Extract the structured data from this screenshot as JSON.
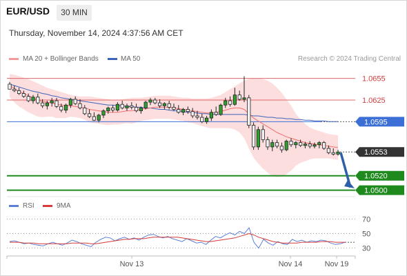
{
  "header": {
    "pair": "EUR/USD",
    "timeframe": "30 MIN",
    "datetime": "Thursday, November 14, 2024 4:37:56 AM CET"
  },
  "legend": {
    "ma20": "MA 20 + Bollinger Bands",
    "ma50": "MA 50",
    "credit": "Research © 2024 Trading Central",
    "rsi": "RSI",
    "rsi_ma": "9MA"
  },
  "colors": {
    "ma20": "#f06f6f",
    "band_fill": "#fbd3d3",
    "ma50": "#3d63b8",
    "candle_up": "#2f9e2f",
    "candle_down": "#f0f0f0",
    "resistance": "#e06666",
    "pivot": "#3b6fd6",
    "support": "#1e8a1e",
    "current": "#333333",
    "arrow": "#2e5fa8",
    "rsi": "#5a7fd6",
    "rsi_ma": "#d63a3a"
  },
  "levels": [
    {
      "value": "1.0655",
      "kind": "resistance"
    },
    {
      "value": "1.0625",
      "kind": "resistance"
    },
    {
      "value": "1.0595",
      "kind": "pivot"
    },
    {
      "value": "1.0553",
      "kind": "current"
    },
    {
      "value": "1.0520",
      "kind": "support"
    },
    {
      "value": "1.0500",
      "kind": "support"
    }
  ],
  "chart_data": {
    "type": "candlestick",
    "price_range": [
      1.0492,
      1.0668
    ],
    "x_ticks": [
      "Nov 13",
      "Nov 14",
      "Nov 19"
    ],
    "candles": [
      [
        1.0647,
        1.065,
        1.064,
        1.064
      ],
      [
        1.064,
        1.0645,
        1.0636,
        1.0638
      ],
      [
        1.0638,
        1.0642,
        1.0632,
        1.0634
      ],
      [
        1.0634,
        1.0638,
        1.0628,
        1.063
      ],
      [
        1.063,
        1.0634,
        1.0622,
        1.0624
      ],
      [
        1.0624,
        1.0632,
        1.062,
        1.0629
      ],
      [
        1.0629,
        1.0634,
        1.0619,
        1.0621
      ],
      [
        1.0621,
        1.0626,
        1.0614,
        1.0617
      ],
      [
        1.0617,
        1.0624,
        1.0612,
        1.0621
      ],
      [
        1.0621,
        1.0628,
        1.0616,
        1.0624
      ],
      [
        1.0624,
        1.0628,
        1.0614,
        1.0616
      ],
      [
        1.0616,
        1.062,
        1.0608,
        1.0611
      ],
      [
        1.0611,
        1.062,
        1.0607,
        1.0618
      ],
      [
        1.0618,
        1.0628,
        1.0614,
        1.0626
      ],
      [
        1.0626,
        1.063,
        1.0618,
        1.062
      ],
      [
        1.062,
        1.0626,
        1.0612,
        1.0614
      ],
      [
        1.0614,
        1.0618,
        1.0604,
        1.0606
      ],
      [
        1.0606,
        1.0612,
        1.06,
        1.0602
      ],
      [
        1.0602,
        1.0608,
        1.0596,
        1.0597
      ],
      [
        1.0597,
        1.0606,
        1.0594,
        1.0604
      ],
      [
        1.0604,
        1.0612,
        1.06,
        1.061
      ],
      [
        1.061,
        1.0616,
        1.0606,
        1.0614
      ],
      [
        1.0614,
        1.0618,
        1.0608,
        1.0611
      ],
      [
        1.0611,
        1.0622,
        1.0609,
        1.0619
      ],
      [
        1.0619,
        1.0624,
        1.0612,
        1.0614
      ],
      [
        1.0614,
        1.062,
        1.061,
        1.0617
      ],
      [
        1.0617,
        1.0622,
        1.0612,
        1.0615
      ],
      [
        1.0615,
        1.062,
        1.0608,
        1.061
      ],
      [
        1.061,
        1.0616,
        1.0606,
        1.0614
      ],
      [
        1.0614,
        1.0624,
        1.0612,
        1.0622
      ],
      [
        1.0622,
        1.0628,
        1.0618,
        1.0625
      ],
      [
        1.0625,
        1.0628,
        1.0619,
        1.0621
      ],
      [
        1.0621,
        1.0626,
        1.0614,
        1.0617
      ],
      [
        1.0617,
        1.0622,
        1.0612,
        1.062
      ],
      [
        1.062,
        1.0624,
        1.0612,
        1.0615
      ],
      [
        1.0615,
        1.062,
        1.061,
        1.0612
      ],
      [
        1.0612,
        1.0618,
        1.0606,
        1.0608
      ],
      [
        1.0608,
        1.0614,
        1.0604,
        1.0612
      ],
      [
        1.0612,
        1.0616,
        1.0606,
        1.0609
      ],
      [
        1.0609,
        1.0614,
        1.06,
        1.0603
      ],
      [
        1.0603,
        1.061,
        1.0598,
        1.0601
      ],
      [
        1.0601,
        1.0606,
        1.0593,
        1.0595
      ],
      [
        1.0595,
        1.0603,
        1.0592,
        1.06
      ],
      [
        1.06,
        1.0612,
        1.0596,
        1.0608
      ],
      [
        1.0608,
        1.0616,
        1.0603,
        1.0605
      ],
      [
        1.0605,
        1.062,
        1.0603,
        1.0618
      ],
      [
        1.0618,
        1.0628,
        1.0614,
        1.0624
      ],
      [
        1.0624,
        1.063,
        1.0616,
        1.0619
      ],
      [
        1.0619,
        1.0642,
        1.0617,
        1.0632
      ],
      [
        1.0632,
        1.0638,
        1.0624,
        1.0626
      ],
      [
        1.0626,
        1.0658,
        1.0622,
        1.0628
      ],
      [
        1.0628,
        1.0632,
        1.0586,
        1.059
      ],
      [
        1.059,
        1.0594,
        1.0556,
        1.056
      ],
      [
        1.056,
        1.0588,
        1.0556,
        1.0584
      ],
      [
        1.0584,
        1.059,
        1.0566,
        1.057
      ],
      [
        1.057,
        1.0574,
        1.0556,
        1.056
      ],
      [
        1.056,
        1.057,
        1.0554,
        1.0566
      ],
      [
        1.0566,
        1.057,
        1.0558,
        1.0561
      ],
      [
        1.0561,
        1.0566,
        1.0552,
        1.0556
      ],
      [
        1.0556,
        1.057,
        1.0554,
        1.0568
      ],
      [
        1.0568,
        1.0572,
        1.056,
        1.0563
      ],
      [
        1.0563,
        1.0568,
        1.0558,
        1.0566
      ],
      [
        1.0566,
        1.057,
        1.056,
        1.0562
      ],
      [
        1.0562,
        1.0567,
        1.0558,
        1.0564
      ],
      [
        1.0564,
        1.0568,
        1.0558,
        1.0561
      ],
      [
        1.0561,
        1.0566,
        1.0558,
        1.0563
      ],
      [
        1.0563,
        1.0568,
        1.0558,
        1.0566
      ],
      [
        1.0566,
        1.0568,
        1.0556,
        1.0558
      ],
      [
        1.0558,
        1.0562,
        1.055,
        1.0552
      ],
      [
        1.0552,
        1.0558,
        1.0548,
        1.055
      ],
      [
        1.055,
        1.0556,
        1.0548,
        1.0553
      ]
    ],
    "ma20": [
      1.0645,
      1.0641,
      1.0637,
      1.0634,
      1.0631,
      1.0628,
      1.0625,
      1.0623,
      1.0622,
      1.0621,
      1.0619,
      1.0618,
      1.0617,
      1.0617,
      1.0616,
      1.0615,
      1.0614,
      1.0612,
      1.0611,
      1.061,
      1.0609,
      1.0608,
      1.0608,
      1.0608,
      1.0609,
      1.061,
      1.061,
      1.0611,
      1.0612,
      1.0613,
      1.0614,
      1.0615,
      1.0615,
      1.0615,
      1.0615,
      1.0614,
      1.0613,
      1.0612,
      1.0611,
      1.061,
      1.0609,
      1.0608,
      1.0607,
      1.0607,
      1.0608,
      1.0609,
      1.0611,
      1.0613,
      1.0614,
      1.0614,
      1.0612,
      1.0606,
      1.06,
      1.0596,
      1.0592,
      1.0588,
      1.0584,
      1.058,
      1.0577,
      1.0574,
      1.0572,
      1.057,
      1.0568,
      1.0566,
      1.0565,
      1.0564,
      1.0563,
      1.0562,
      1.0561,
      1.056,
      1.0559
    ],
    "bb_upper": [
      1.0661,
      1.066,
      1.0658,
      1.0656,
      1.0654,
      1.0651,
      1.0648,
      1.0645,
      1.0642,
      1.064,
      1.0638,
      1.0636,
      1.0634,
      1.0632,
      1.0631,
      1.063,
      1.063,
      1.063,
      1.0629,
      1.0628,
      1.0627,
      1.0626,
      1.0625,
      1.0625,
      1.0626,
      1.0627,
      1.0628,
      1.0628,
      1.0628,
      1.0629,
      1.063,
      1.0631,
      1.0631,
      1.0631,
      1.0631,
      1.063,
      1.0629,
      1.0628,
      1.0628,
      1.0627,
      1.0627,
      1.0627,
      1.0627,
      1.0628,
      1.063,
      1.0632,
      1.0636,
      1.064,
      1.0644,
      1.0648,
      1.0652,
      1.0654,
      1.0655,
      1.0655,
      1.0654,
      1.0652,
      1.0648,
      1.0642,
      1.0635,
      1.0626,
      1.0617,
      1.0606,
      1.0598,
      1.0592,
      1.0587,
      1.0584,
      1.0582,
      1.058,
      1.0578,
      1.0577,
      1.0576
    ],
    "bb_lower": [
      1.0629,
      1.0622,
      1.0616,
      1.0612,
      1.0608,
      1.0605,
      1.0602,
      1.0601,
      1.0602,
      1.0602,
      1.06,
      1.06,
      1.06,
      1.0602,
      1.0601,
      1.06,
      1.0598,
      1.0594,
      1.0593,
      1.0592,
      1.0591,
      1.059,
      1.0591,
      1.0591,
      1.0592,
      1.0593,
      1.0592,
      1.0594,
      1.0596,
      1.0597,
      1.0598,
      1.0599,
      1.0599,
      1.0599,
      1.0599,
      1.0598,
      1.0597,
      1.0596,
      1.0594,
      1.0593,
      1.0591,
      1.0589,
      1.0587,
      1.0586,
      1.0586,
      1.0586,
      1.0586,
      1.0586,
      1.0584,
      1.058,
      1.0572,
      1.0558,
      1.0545,
      1.0537,
      1.053,
      1.0524,
      1.052,
      1.0518,
      1.0519,
      1.0522,
      1.0527,
      1.0534,
      1.0538,
      1.054,
      1.0543,
      1.0544,
      1.0544,
      1.0544,
      1.0544,
      1.0543,
      1.0542
    ],
    "ma50": [
      1.0647,
      1.0645,
      1.0643,
      1.0641,
      1.0639,
      1.0637,
      1.0636,
      1.0634,
      1.0633,
      1.0631,
      1.063,
      1.0628,
      1.0627,
      1.0626,
      1.0625,
      1.0624,
      1.0623,
      1.0622,
      1.0621,
      1.062,
      1.0619,
      1.0618,
      1.0618,
      1.0617,
      1.0617,
      1.0616,
      1.0616,
      1.0615,
      1.0615,
      1.0614,
      1.0614,
      1.0613,
      1.0612,
      1.0612,
      1.0611,
      1.061,
      1.061,
      1.0609,
      1.0608,
      1.0608,
      1.0607,
      1.0606,
      1.0606,
      1.0605,
      1.0605,
      1.0605,
      1.0605,
      1.0605,
      1.0605,
      1.0605,
      1.0605,
      1.0604,
      1.0603,
      1.0603,
      1.0602,
      1.0601,
      1.0601,
      1.06,
      1.06,
      1.0599,
      1.0599,
      1.0598,
      1.0598,
      1.0597,
      1.0597,
      1.0596,
      1.0596,
      1.0596,
      1.0595,
      1.0595,
      1.0595
    ],
    "rsi_range": [
      22,
      78
    ],
    "rsi_ticks": [
      70,
      50,
      30
    ],
    "rsi": [
      39,
      40,
      38,
      36,
      37,
      35,
      34,
      33,
      36,
      38,
      36,
      34,
      37,
      41,
      39,
      36,
      34,
      32,
      38,
      42,
      45,
      44,
      40,
      43,
      45,
      42,
      44,
      41,
      45,
      48,
      49,
      46,
      44,
      46,
      43,
      41,
      39,
      43,
      40,
      37,
      38,
      35,
      41,
      46,
      44,
      48,
      51,
      48,
      53,
      50,
      58,
      38,
      30,
      42,
      37,
      34,
      39,
      36,
      35,
      42,
      39,
      41,
      38,
      40,
      39,
      41,
      40,
      37,
      35,
      36,
      38
    ],
    "rsi_ma": [
      38,
      38,
      38,
      37,
      37,
      37,
      36,
      36,
      36,
      36,
      36,
      36,
      36,
      37,
      37,
      37,
      37,
      36,
      36,
      37,
      38,
      39,
      40,
      41,
      42,
      42,
      43,
      43,
      43,
      44,
      45,
      45,
      45,
      45,
      45,
      45,
      44,
      43,
      42,
      41,
      40,
      39,
      39,
      40,
      41,
      42,
      43,
      44,
      46,
      48,
      50,
      48,
      45,
      43,
      41,
      39,
      38,
      37,
      37,
      37,
      37,
      38,
      38,
      38,
      38,
      39,
      39,
      39,
      38,
      38,
      38
    ]
  }
}
